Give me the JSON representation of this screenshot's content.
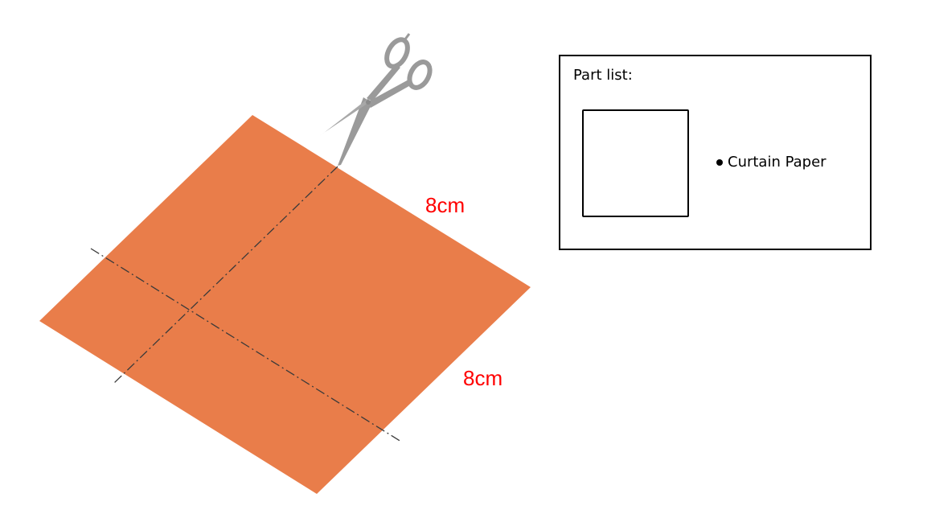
{
  "colors": {
    "paper": "#E97D4A",
    "dimension_text": "#FF0000",
    "cut_line": "#3a3a3a",
    "scissors": "#9a9a9a"
  },
  "dimensions": {
    "top_edge_label": "8cm",
    "right_edge_label": "8cm"
  },
  "part_list": {
    "title": "Part list:",
    "items": [
      {
        "label": "Curtain Paper",
        "icon": "square-outline-icon"
      }
    ]
  },
  "icons": {
    "scissors": "scissors-icon",
    "paper": "orange-square-paper"
  }
}
